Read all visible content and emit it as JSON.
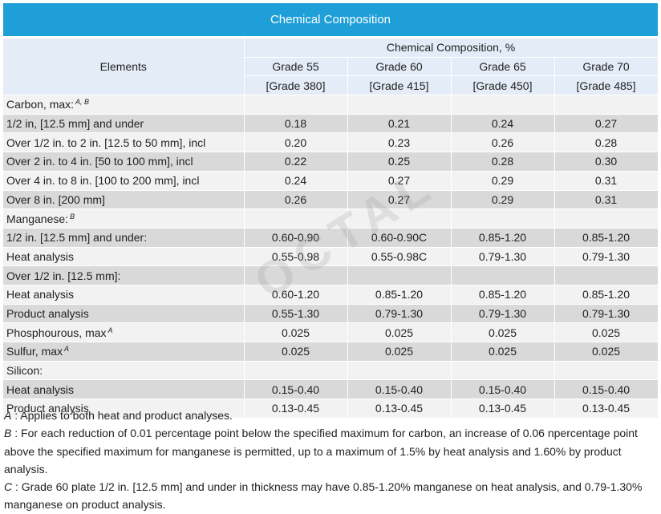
{
  "title": "Chemical Composition",
  "header": {
    "elements": "Elements",
    "group": "Chemical Composition, %",
    "grades": [
      {
        "line1": "Grade 55",
        "line2": "[Grade 380]"
      },
      {
        "line1": "Grade 60",
        "line2": "[Grade 415]"
      },
      {
        "line1": "Grade 65",
        "line2": "[Grade 450]"
      },
      {
        "line1": "Grade 70",
        "line2": "[Grade 485]"
      }
    ]
  },
  "rows": [
    {
      "label": "Carbon, max:",
      "sup": "A, B",
      "values": [
        "",
        "",
        "",
        ""
      ]
    },
    {
      "label": "1/2 in, [12.5 mm] and under",
      "values": [
        "0.18",
        "0.21",
        "0.24",
        "0.27"
      ]
    },
    {
      "label": "Over 1/2 in. to 2 in. [12.5 to 50 mm], incl",
      "values": [
        "0.20",
        "0.23",
        "0.26",
        "0.28"
      ]
    },
    {
      "label": "Over 2 in. to 4 in. [50 to 100 mm], incl",
      "values": [
        "0.22",
        "0.25",
        "0.28",
        "0.30"
      ]
    },
    {
      "label": "Over 4 in. to 8 in. [100 to 200 mm], incl",
      "values": [
        "0.24",
        "0.27",
        "0.29",
        "0.31"
      ]
    },
    {
      "label": "Over 8 in. [200 mm]",
      "values": [
        "0.26",
        "0.27",
        "0.29",
        "0.31"
      ]
    },
    {
      "label": "Manganese:",
      "sup": "B",
      "values": [
        "",
        "",
        "",
        ""
      ]
    },
    {
      "label": "1/2 in. [12.5 mm] and under:",
      "values": [
        "0.60-0.90",
        "0.60-0.90C",
        "0.85-1.20",
        "0.85-1.20"
      ]
    },
    {
      "label": "Heat analysis",
      "values": [
        "0.55-0.98",
        "0.55-0.98C",
        "0.79-1.30",
        "0.79-1.30"
      ]
    },
    {
      "label": "Over 1/2 in.  [12.5 mm]:",
      "values": [
        "",
        "",
        "",
        ""
      ]
    },
    {
      "label": "Heat analysis",
      "values": [
        "0.60-1.20",
        "0.85-1.20",
        "0.85-1.20",
        "0.85-1.20"
      ]
    },
    {
      "label": "Product analysis",
      "values": [
        "0.55-1.30",
        "0.79-1.30",
        "0.79-1.30",
        "0.79-1.30"
      ]
    },
    {
      "label": "Phosphourous, max",
      "sup": "A",
      "values": [
        "0.025",
        "0.025",
        "0.025",
        "0.025"
      ]
    },
    {
      "label": "Sulfur, max",
      "sup": "A",
      "values": [
        "0.025",
        "0.025",
        "0.025",
        "0.025"
      ]
    },
    {
      "label": "Silicon:",
      "values": [
        "",
        "",
        "",
        ""
      ]
    },
    {
      "label": "Heat analysis",
      "values": [
        "0.15-0.40",
        "0.15-0.40",
        "0.15-0.40",
        "0.15-0.40"
      ]
    },
    {
      "label": "Product  analysis",
      "values": [
        "0.13-0.45",
        "0.13-0.45",
        "0.13-0.45",
        "0.13-0.45"
      ]
    }
  ],
  "notes": [
    {
      "key": "A",
      "sep": " : ",
      "text": "Applies to both heat and product analyses."
    },
    {
      "key": "B",
      "sep": " : ",
      "text": "For each reduction of 0.01 percentage point below the specified maximum for carbon, an increase of 0.06 npercentage point above the specified maximum for manganese is permitted, up to a maximum of 1.5% by heat analysis and 1.60% by product analysis."
    },
    {
      "key": "C",
      "sep": " : ",
      "text": "Grade 60 plate 1/2 in. [12.5 mm] and under in thickness may have 0.85-1.20% manganese on heat analysis, and 0.79-1.30% manganese on product analysis."
    }
  ],
  "watermark": "OCTAL"
}
